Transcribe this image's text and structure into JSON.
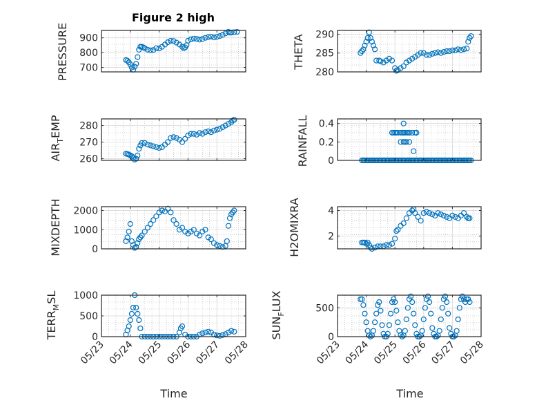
{
  "title": "Figure 2 high",
  "xlabel": "Time",
  "xtick_labels": [
    "05/23",
    "05/24",
    "05/25",
    "05/26",
    "05/27",
    "05/28"
  ],
  "colors": {
    "marker": "#0072bd",
    "axis": "#262626",
    "grid": "#b0b0b0"
  },
  "chart_data": [
    {
      "type": "scatter",
      "ylabel": "PRESSURE",
      "ylim": [
        670,
        950
      ],
      "yticks": [
        700,
        800,
        900
      ],
      "xlim": [
        0,
        5
      ],
      "grid": true,
      "marker": "circle",
      "series": [
        {
          "x": [
            0.85,
            0.9,
            0.95,
            1.0,
            1.05,
            1.1,
            1.15,
            1.2,
            1.25,
            1.3,
            1.35,
            1.4,
            1.45,
            1.5,
            1.6,
            1.7,
            1.8,
            1.9,
            2.0,
            2.1,
            2.2,
            2.3,
            2.4,
            2.5,
            2.6,
            2.7,
            2.8,
            2.85,
            2.9,
            2.95,
            3.0,
            3.1,
            3.2,
            3.3,
            3.4,
            3.5,
            3.6,
            3.7,
            3.8,
            3.9,
            4.0,
            4.1,
            4.2,
            4.3,
            4.4,
            4.45,
            4.5,
            4.6,
            4.7
          ],
          "y": [
            750,
            745,
            735,
            720,
            700,
            685,
            705,
            725,
            770,
            820,
            840,
            840,
            835,
            830,
            820,
            815,
            818,
            830,
            828,
            840,
            855,
            870,
            880,
            878,
            868,
            855,
            840,
            830,
            835,
            850,
            880,
            890,
            895,
            893,
            888,
            892,
            900,
            905,
            908,
            903,
            906,
            912,
            920,
            930,
            940,
            935,
            935,
            938,
            940
          ]
        }
      ]
    },
    {
      "type": "scatter",
      "ylabel": "THETA",
      "ylim": [
        280,
        291
      ],
      "yticks": [
        280,
        285,
        290
      ],
      "xlim": [
        0,
        5
      ],
      "grid": true,
      "marker": "circle",
      "series": [
        {
          "x": [
            0.8,
            0.85,
            0.9,
            0.95,
            1.0,
            1.05,
            1.1,
            1.15,
            1.2,
            1.25,
            1.3,
            1.35,
            1.45,
            1.5,
            1.6,
            1.7,
            1.8,
            1.9,
            2.0,
            2.05,
            2.1,
            2.2,
            2.3,
            2.4,
            2.5,
            2.6,
            2.7,
            2.8,
            2.9,
            3.0,
            3.1,
            3.2,
            3.3,
            3.4,
            3.5,
            3.6,
            3.7,
            3.8,
            3.9,
            4.0,
            4.1,
            4.2,
            4.3,
            4.4,
            4.5,
            4.55,
            4.6,
            4.65
          ],
          "y": [
            285,
            285.5,
            286,
            287,
            288,
            289,
            290.5,
            289,
            288,
            287,
            286,
            283,
            283,
            282.8,
            282.5,
            283,
            283.5,
            283,
            281,
            280.3,
            280.5,
            281,
            281.5,
            282.5,
            283,
            283.5,
            284,
            284.5,
            285,
            285,
            284.5,
            284.5,
            284.8,
            285,
            285.2,
            285,
            285.3,
            285.5,
            285.5,
            285.7,
            285.7,
            286,
            285.8,
            286,
            286.2,
            288,
            289,
            289.5
          ]
        }
      ]
    },
    {
      "type": "scatter",
      "ylabel": "AIR_TEMP",
      "ylim": [
        259,
        284
      ],
      "yticks": [
        260,
        270,
        280
      ],
      "xlim": [
        0,
        5
      ],
      "grid": true,
      "marker": "circle",
      "series": [
        {
          "x": [
            0.85,
            0.9,
            0.95,
            1.0,
            1.05,
            1.1,
            1.15,
            1.2,
            1.25,
            1.3,
            1.35,
            1.4,
            1.5,
            1.6,
            1.7,
            1.8,
            1.9,
            2.0,
            2.1,
            2.2,
            2.3,
            2.4,
            2.5,
            2.6,
            2.7,
            2.8,
            2.9,
            3.0,
            3.1,
            3.2,
            3.3,
            3.4,
            3.5,
            3.6,
            3.7,
            3.8,
            3.9,
            4.0,
            4.1,
            4.2,
            4.3,
            4.4,
            4.5,
            4.55,
            4.6
          ],
          "y": [
            263,
            262.8,
            262.5,
            262,
            261.5,
            260.5,
            259.5,
            260,
            262,
            266,
            268,
            269.5,
            269.5,
            268.5,
            268,
            267.5,
            267,
            266.5,
            267,
            268.5,
            270,
            272.5,
            273,
            272.5,
            271.5,
            270,
            272,
            274,
            275,
            275,
            274.5,
            275.5,
            275,
            276,
            276.5,
            276,
            277,
            277.5,
            278,
            279,
            280,
            281,
            282,
            283,
            283.5
          ]
        }
      ]
    },
    {
      "type": "scatter",
      "ylabel": "RAINFALL",
      "ylim": [
        0,
        0.45
      ],
      "yticks": [
        0,
        0.2,
        0.4
      ],
      "xlim": [
        0,
        5
      ],
      "grid": true,
      "marker": "circle",
      "series": [
        {
          "x": [
            0.85,
            0.9,
            0.95,
            1.0,
            1.05,
            1.1,
            1.15,
            1.2,
            1.25,
            1.3,
            1.35,
            1.4,
            1.45,
            1.5,
            1.55,
            1.6,
            1.65,
            1.7,
            1.75,
            1.8,
            1.85,
            1.9,
            1.95,
            2.0,
            2.05,
            2.1,
            2.15,
            2.2,
            2.25,
            2.3,
            2.35,
            2.4,
            2.45,
            2.5,
            2.55,
            2.6,
            2.65,
            2.7,
            2.75,
            2.8,
            2.85,
            2.9,
            2.95,
            3.0,
            3.05,
            3.1,
            3.15,
            3.2,
            3.25,
            3.3,
            3.35,
            3.4,
            3.45,
            3.5,
            3.55,
            3.6,
            3.65,
            3.7,
            3.75,
            3.8,
            3.85,
            3.9,
            3.95,
            4.0,
            4.05,
            4.1,
            4.15,
            4.2,
            4.25,
            4.3,
            4.35,
            4.4,
            4.45,
            4.5,
            4.55,
            4.6,
            4.65,
            1.9,
            1.95,
            2.0,
            2.05,
            2.1,
            2.2,
            2.25,
            2.3,
            2.35,
            2.4,
            2.45,
            2.5,
            2.2,
            2.3,
            2.35,
            2.4,
            2.5,
            2.6,
            2.7,
            2.3,
            2.65,
            2.75
          ],
          "y": [
            0,
            0,
            0,
            0,
            0,
            0,
            0,
            0,
            0,
            0,
            0,
            0,
            0,
            0,
            0,
            0,
            0,
            0,
            0,
            0,
            0,
            0,
            0,
            0,
            0,
            0,
            0,
            0,
            0,
            0,
            0,
            0,
            0,
            0,
            0,
            0,
            0,
            0,
            0,
            0,
            0,
            0,
            0,
            0,
            0,
            0,
            0,
            0,
            0,
            0,
            0,
            0,
            0,
            0,
            0,
            0,
            0,
            0,
            0,
            0,
            0,
            0,
            0,
            0,
            0,
            0,
            0,
            0,
            0,
            0,
            0,
            0,
            0,
            0,
            0,
            0,
            0,
            0.3,
            0.3,
            0.3,
            0.3,
            0.3,
            0.3,
            0.3,
            0.3,
            0.3,
            0.3,
            0.3,
            0.3,
            0.2,
            0.2,
            0.2,
            0.2,
            0.2,
            0.3,
            0.3,
            0.4,
            0.1,
            0.3
          ]
        }
      ]
    },
    {
      "type": "scatter",
      "ylabel": "MIXDEPTH",
      "ylim": [
        0,
        2200
      ],
      "yticks": [
        0,
        1000,
        2000
      ],
      "xlim": [
        0,
        5
      ],
      "grid": true,
      "marker": "circle",
      "series": [
        {
          "x": [
            0.85,
            0.9,
            0.95,
            1.0,
            1.05,
            1.1,
            1.15,
            1.2,
            1.25,
            1.3,
            1.35,
            1.4,
            1.5,
            1.6,
            1.7,
            1.8,
            1.9,
            2.0,
            2.1,
            2.2,
            2.3,
            2.4,
            2.5,
            2.6,
            2.7,
            2.8,
            2.9,
            3.0,
            3.1,
            3.2,
            3.3,
            3.4,
            3.5,
            3.6,
            3.7,
            3.8,
            3.9,
            4.0,
            4.1,
            4.2,
            4.3,
            4.35,
            4.4,
            4.45,
            4.5,
            4.55,
            4.6
          ],
          "y": [
            400,
            600,
            900,
            1300,
            400,
            200,
            50,
            100,
            300,
            500,
            600,
            700,
            900,
            1100,
            1300,
            1500,
            1700,
            1900,
            2000,
            1950,
            2100,
            1900,
            1500,
            1300,
            1000,
            1100,
            900,
            800,
            900,
            1000,
            800,
            700,
            900,
            1000,
            600,
            500,
            300,
            200,
            150,
            100,
            150,
            400,
            1200,
            1600,
            1800,
            1900,
            2000
          ]
        }
      ]
    },
    {
      "type": "scatter",
      "ylabel": "H2OMIXRA",
      "ylim": [
        1,
        4.3
      ],
      "yticks": [
        2,
        4
      ],
      "xlim": [
        0,
        5
      ],
      "grid": true,
      "marker": "circle",
      "series": [
        {
          "x": [
            0.85,
            0.9,
            0.95,
            1.0,
            1.05,
            1.1,
            1.15,
            1.2,
            1.3,
            1.4,
            1.5,
            1.6,
            1.7,
            1.8,
            1.9,
            2.0,
            2.05,
            2.1,
            2.2,
            2.3,
            2.4,
            2.5,
            2.6,
            2.65,
            2.7,
            2.8,
            2.9,
            3.0,
            3.1,
            3.2,
            3.3,
            3.4,
            3.5,
            3.6,
            3.7,
            3.8,
            3.9,
            4.0,
            4.1,
            4.2,
            4.3,
            4.4,
            4.5,
            4.55,
            4.6
          ],
          "y": [
            1.5,
            1.5,
            1.5,
            1.4,
            1.5,
            1.3,
            1.1,
            1.0,
            1.1,
            1.2,
            1.2,
            1.2,
            1.3,
            1.3,
            1.4,
            1.8,
            2.4,
            2.5,
            2.8,
            3.0,
            3.4,
            3.8,
            4.0,
            4.1,
            3.8,
            3.5,
            3.2,
            3.8,
            3.9,
            3.8,
            3.7,
            3.6,
            3.8,
            3.7,
            3.6,
            3.5,
            3.4,
            3.6,
            3.5,
            3.4,
            3.6,
            3.8,
            3.5,
            3.4,
            3.4
          ]
        }
      ]
    },
    {
      "type": "scatter",
      "ylabel": "TERR_MSL",
      "ylim": [
        0,
        1000
      ],
      "yticks": [
        0,
        500,
        1000
      ],
      "xlim": [
        0,
        5
      ],
      "grid": true,
      "marker": "circle",
      "series": [
        {
          "x": [
            0.85,
            0.9,
            0.95,
            1.0,
            1.05,
            1.1,
            1.15,
            1.2,
            1.25,
            1.3,
            1.35,
            1.4,
            1.5,
            1.6,
            1.7,
            1.8,
            1.9,
            2.0,
            2.1,
            2.2,
            2.3,
            2.4,
            2.5,
            2.6,
            2.7,
            2.75,
            2.8,
            2.9,
            3.0,
            3.1,
            3.2,
            3.3,
            3.4,
            3.5,
            3.6,
            3.7,
            3.8,
            3.9,
            4.0,
            4.1,
            4.2,
            4.3,
            4.4,
            4.5,
            4.6
          ],
          "y": [
            50,
            150,
            250,
            400,
            550,
            700,
            1000,
            700,
            550,
            400,
            200,
            0,
            0,
            0,
            0,
            0,
            0,
            0,
            0,
            0,
            0,
            0,
            0,
            0,
            100,
            200,
            250,
            50,
            0,
            0,
            0,
            0,
            50,
            80,
            100,
            120,
            100,
            50,
            30,
            20,
            40,
            60,
            100,
            140,
            120
          ]
        }
      ]
    },
    {
      "type": "scatter",
      "ylabel": "SUN_FLUX",
      "ylim": [
        0,
        720
      ],
      "yticks": [
        0,
        500
      ],
      "xlim": [
        0,
        5
      ],
      "grid": true,
      "marker": "circle",
      "series": [
        {
          "x": [
            0.8,
            0.85,
            0.9,
            0.95,
            1.0,
            1.05,
            1.1,
            1.15,
            1.2,
            1.25,
            1.3,
            1.35,
            1.4,
            1.45,
            1.5,
            1.55,
            1.6,
            1.65,
            1.7,
            1.75,
            1.8,
            1.85,
            1.9,
            1.95,
            2.0,
            2.05,
            2.1,
            2.15,
            2.2,
            2.25,
            2.3,
            2.35,
            2.4,
            2.45,
            2.5,
            2.55,
            2.6,
            2.65,
            2.7,
            2.75,
            2.8,
            2.85,
            2.9,
            2.95,
            3.0,
            3.05,
            3.1,
            3.15,
            3.2,
            3.25,
            3.3,
            3.35,
            3.4,
            3.45,
            3.5,
            3.55,
            3.6,
            3.65,
            3.7,
            3.75,
            3.8,
            3.85,
            3.9,
            3.95,
            4.0,
            4.05,
            4.1,
            4.15,
            4.2,
            4.25,
            4.3,
            4.35,
            4.4,
            4.45,
            4.5,
            4.55,
            4.6
          ],
          "y": [
            650,
            650,
            550,
            400,
            250,
            100,
            20,
            0,
            20,
            100,
            250,
            400,
            550,
            600,
            450,
            200,
            50,
            0,
            0,
            50,
            200,
            400,
            600,
            650,
            600,
            450,
            250,
            100,
            30,
            0,
            20,
            100,
            300,
            500,
            650,
            700,
            600,
            400,
            200,
            50,
            0,
            0,
            20,
            100,
            300,
            500,
            650,
            700,
            600,
            400,
            150,
            50,
            0,
            0,
            20,
            100,
            300,
            500,
            650,
            700,
            600,
            400,
            150,
            50,
            0,
            0,
            20,
            100,
            300,
            500,
            650,
            700,
            650,
            600,
            650,
            650,
            600
          ]
        }
      ]
    }
  ]
}
